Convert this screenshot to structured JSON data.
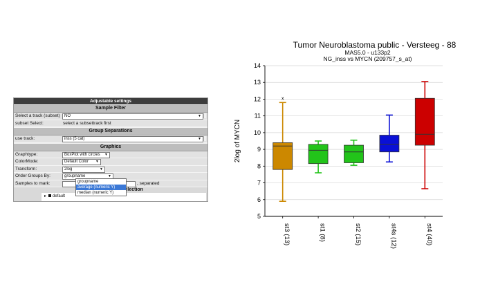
{
  "settings": {
    "title": "Adjustable settings",
    "sample_filter_header": "Sample Filter",
    "select_track_label": "Select a track (subset)",
    "select_track_value": "NO",
    "subset_select_label": "subset Select:",
    "subset_select_value": "select a subsettrack first",
    "group_separations_header": "Group Separations",
    "use_track_label": "use track:",
    "use_track_value": "inss (5 cat)",
    "graphics_header": "Graphics",
    "graphtype_label": "Graphtype:",
    "graphtype_value": "BoxPlot with circles",
    "colormode_label": "ColorMode:",
    "colormode_value": "Default Color",
    "transform_label": "Transform:",
    "transform_value": "2log",
    "order_groups_label": "Order Groups By:",
    "order_groups_value": "groupname",
    "samples_to_mark_label": "Samples to mark:",
    "samples_to_mark_suffix": ", separated",
    "order_options": [
      "groupname",
      "average (numeric Y)",
      "median (numeric Y)"
    ],
    "order_highlighted_index": 1,
    "partial_section_header": "y Selection",
    "tree_item": "default"
  },
  "chart_data": {
    "type": "box",
    "title": "Tumor Neuroblastoma public - Versteeg - 88",
    "subtitle_1": "MAS5.0 - u133p2",
    "subtitle_2": "NG_inss vs MYCN (209757_s_at)",
    "xlabel": "",
    "ylabel": "2log of MYCN",
    "ylim": [
      5,
      14
    ],
    "yticks": [
      5,
      6,
      7,
      8,
      9,
      10,
      11,
      12,
      13,
      14
    ],
    "grid": true,
    "categories": [
      "st3 (13)",
      "st1 (8)",
      "st2 (15)",
      "st4s (12)",
      "st4 (40)"
    ],
    "boxes": [
      {
        "name": "st3 (13)",
        "min": 5.9,
        "q1": 7.8,
        "median": 9.2,
        "q3": 9.4,
        "max": 11.8,
        "outliers": [
          12.05
        ],
        "color": "#cc8800"
      },
      {
        "name": "st1 (8)",
        "min": 7.6,
        "q1": 8.15,
        "median": 8.95,
        "q3": 9.3,
        "max": 9.5,
        "outliers": [],
        "color": "#22c41a"
      },
      {
        "name": "st2 (15)",
        "min": 8.05,
        "q1": 8.2,
        "median": 8.85,
        "q3": 9.25,
        "max": 9.55,
        "outliers": [],
        "color": "#22c41a"
      },
      {
        "name": "st4s (12)",
        "min": 8.25,
        "q1": 8.85,
        "median": 9.3,
        "q3": 9.85,
        "max": 11.05,
        "outliers": [],
        "color": "#0a10d6"
      },
      {
        "name": "st4 (40)",
        "min": 6.65,
        "q1": 9.25,
        "median": 9.9,
        "q3": 12.05,
        "max": 13.05,
        "outliers": [],
        "color": "#cc0000"
      }
    ]
  }
}
